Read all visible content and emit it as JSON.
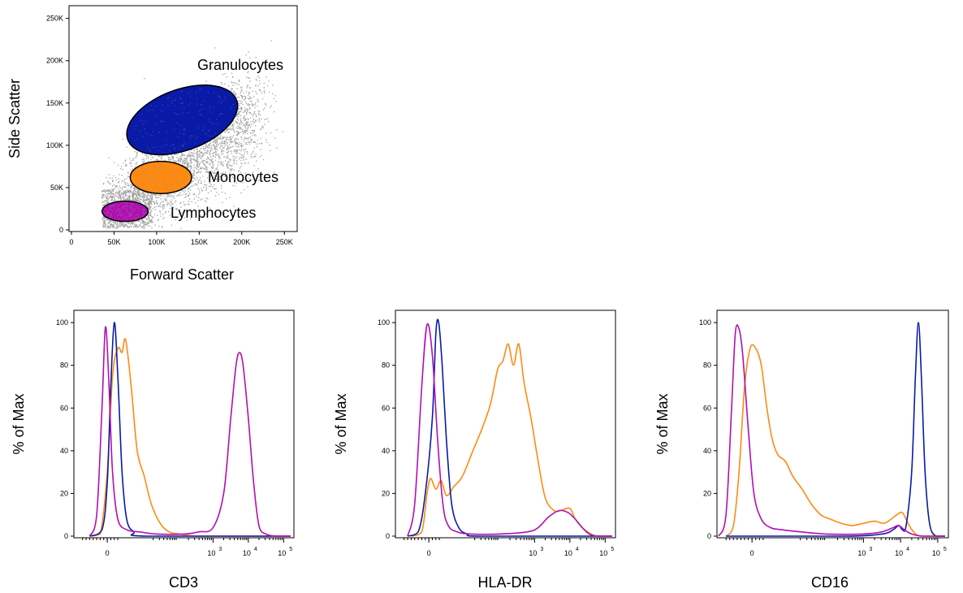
{
  "chart_data": [
    {
      "type": "scatter",
      "xlabel": "Forward Scatter",
      "ylabel": "Side Scatter",
      "xlim": [
        0,
        262144
      ],
      "ylim": [
        0,
        262144
      ],
      "xticks": [
        {
          "v": 0,
          "label": "0"
        },
        {
          "v": 50000,
          "label": "50K"
        },
        {
          "v": 100000,
          "label": "100K"
        },
        {
          "v": 150000,
          "label": "150K"
        },
        {
          "v": 200000,
          "label": "200K"
        },
        {
          "v": 250000,
          "label": "250K"
        }
      ],
      "yticks": [
        {
          "v": 0,
          "label": "0"
        },
        {
          "v": 50000,
          "label": "50K"
        },
        {
          "v": 100000,
          "label": "100K"
        },
        {
          "v": 150000,
          "label": "150K"
        },
        {
          "v": 200000,
          "label": "200K"
        },
        {
          "v": 250000,
          "label": "250K"
        }
      ],
      "background_color": "#a0a0a0",
      "gates": [
        {
          "name": "Granulocytes",
          "cx": 130000,
          "cy": 130000,
          "rx": 68000,
          "ry": 36000,
          "angle": -20,
          "color": "#0a1aa8"
        },
        {
          "name": "Monocytes",
          "cx": 105000,
          "cy": 62000,
          "rx": 36000,
          "ry": 19000,
          "angle": 0,
          "color": "#ff8a10"
        },
        {
          "name": "Lymphocytes",
          "cx": 63000,
          "cy": 22000,
          "rx": 27000,
          "ry": 12000,
          "angle": 0,
          "color": "#b10fb1"
        }
      ]
    },
    {
      "type": "line",
      "xlabel": "CD3",
      "ylabel": "% of Max",
      "ylim": [
        0,
        105
      ],
      "yticks": [
        0,
        20,
        40,
        60,
        80,
        100
      ],
      "xticks": [
        {
          "v": 0,
          "label": "0"
        },
        {
          "v": 3,
          "label": "3",
          "exp": true
        },
        {
          "v": 4,
          "label": "4",
          "exp": true
        },
        {
          "v": 5,
          "label": "5",
          "exp": true
        }
      ],
      "xlim": [
        -0.9,
        5.2
      ],
      "series": [
        {
          "color": "#ff8a10",
          "points": [
            [
              -0.5,
              0
            ],
            [
              -0.2,
              1
            ],
            [
              0,
              30
            ],
            [
              0.15,
              75
            ],
            [
              0.3,
              88
            ],
            [
              0.42,
              86
            ],
            [
              0.52,
              92
            ],
            [
              0.68,
              70
            ],
            [
              0.85,
              40
            ],
            [
              1.05,
              28
            ],
            [
              1.25,
              15
            ],
            [
              1.5,
              6
            ],
            [
              1.75,
              2
            ],
            [
              2.05,
              1
            ],
            [
              2.5,
              0
            ],
            [
              3.2,
              0
            ],
            [
              5.2,
              0
            ]
          ]
        },
        {
          "color": "#0a1aa8",
          "points": [
            [
              -0.5,
              0
            ],
            [
              -0.15,
              3
            ],
            [
              0,
              25
            ],
            [
              0.1,
              70
            ],
            [
              0.2,
              100
            ],
            [
              0.3,
              75
            ],
            [
              0.42,
              30
            ],
            [
              0.55,
              8
            ],
            [
              0.75,
              2
            ],
            [
              1.1,
              0
            ],
            [
              5.2,
              0
            ]
          ]
        },
        {
          "color": "#b10fb1",
          "points": [
            [
              -0.5,
              0
            ],
            [
              -0.3,
              10
            ],
            [
              -0.15,
              60
            ],
            [
              -0.05,
              98
            ],
            [
              0.05,
              70
            ],
            [
              0.15,
              30
            ],
            [
              0.3,
              8
            ],
            [
              0.55,
              3
            ],
            [
              0.9,
              2
            ],
            [
              1.4,
              1
            ],
            [
              2.2,
              1
            ],
            [
              2.6,
              2
            ],
            [
              3.0,
              4
            ],
            [
              3.3,
              20
            ],
            [
              3.5,
              55
            ],
            [
              3.65,
              80
            ],
            [
              3.75,
              86
            ],
            [
              3.85,
              80
            ],
            [
              4.0,
              55
            ],
            [
              4.15,
              25
            ],
            [
              4.3,
              5
            ],
            [
              4.5,
              1
            ],
            [
              4.8,
              0
            ],
            [
              5.2,
              0
            ]
          ]
        }
      ]
    },
    {
      "type": "line",
      "xlabel": "HLA-DR",
      "ylabel": "% of Max",
      "ylim": [
        0,
        105
      ],
      "yticks": [
        0,
        20,
        40,
        60,
        80,
        100
      ],
      "xticks": [
        {
          "v": 0,
          "label": "0"
        },
        {
          "v": 3,
          "label": "3",
          "exp": true
        },
        {
          "v": 4,
          "label": "4",
          "exp": true
        },
        {
          "v": 5,
          "label": "5",
          "exp": true
        }
      ],
      "xlim": [
        -0.9,
        5.2
      ],
      "series": [
        {
          "color": "#ff8a10",
          "points": [
            [
              -0.5,
              0
            ],
            [
              -0.2,
              2
            ],
            [
              -0.05,
              20
            ],
            [
              0.05,
              27
            ],
            [
              0.2,
              22
            ],
            [
              0.35,
              26
            ],
            [
              0.5,
              19
            ],
            [
              0.7,
              23
            ],
            [
              0.95,
              28
            ],
            [
              1.25,
              40
            ],
            [
              1.5,
              50
            ],
            [
              1.75,
              62
            ],
            [
              1.95,
              78
            ],
            [
              2.1,
              82
            ],
            [
              2.25,
              90
            ],
            [
              2.4,
              80
            ],
            [
              2.55,
              90
            ],
            [
              2.7,
              72
            ],
            [
              2.9,
              55
            ],
            [
              3.1,
              35
            ],
            [
              3.3,
              18
            ],
            [
              3.55,
              12
            ],
            [
              3.75,
              12
            ],
            [
              4.0,
              13
            ],
            [
              4.15,
              8
            ],
            [
              4.35,
              4
            ],
            [
              4.6,
              1
            ],
            [
              4.8,
              0
            ],
            [
              5.2,
              0
            ]
          ]
        },
        {
          "color": "#0a1aa8",
          "points": [
            [
              -0.6,
              0
            ],
            [
              -0.3,
              2
            ],
            [
              -0.1,
              20
            ],
            [
              0.1,
              55
            ],
            [
              0.2,
              95
            ],
            [
              0.28,
              100
            ],
            [
              0.38,
              80
            ],
            [
              0.5,
              45
            ],
            [
              0.65,
              15
            ],
            [
              0.85,
              4
            ],
            [
              1.1,
              1
            ],
            [
              1.5,
              0
            ],
            [
              5.2,
              0
            ]
          ]
        },
        {
          "color": "#b10fb1",
          "points": [
            [
              -0.6,
              0
            ],
            [
              -0.4,
              15
            ],
            [
              -0.2,
              70
            ],
            [
              -0.05,
              99
            ],
            [
              0.1,
              85
            ],
            [
              0.25,
              45
            ],
            [
              0.4,
              15
            ],
            [
              0.55,
              5
            ],
            [
              0.8,
              2
            ],
            [
              1.2,
              1
            ],
            [
              2.0,
              1
            ],
            [
              2.8,
              2
            ],
            [
              3.1,
              4
            ],
            [
              3.4,
              9
            ],
            [
              3.7,
              12
            ],
            [
              3.95,
              11
            ],
            [
              4.15,
              8
            ],
            [
              4.35,
              4
            ],
            [
              4.55,
              1
            ],
            [
              4.8,
              0
            ],
            [
              5.2,
              0
            ]
          ]
        }
      ]
    },
    {
      "type": "line",
      "xlabel": "CD16",
      "ylabel": "% of Max",
      "ylim": [
        0,
        105
      ],
      "yticks": [
        0,
        20,
        40,
        60,
        80,
        100
      ],
      "xticks": [
        {
          "v": 0,
          "label": "0"
        },
        {
          "v": 3,
          "label": "3",
          "exp": true
        },
        {
          "v": 4,
          "label": "4",
          "exp": true
        },
        {
          "v": 5,
          "label": "5",
          "exp": true
        }
      ],
      "xlim": [
        -0.9,
        5.2
      ],
      "series": [
        {
          "color": "#ff8a10",
          "points": [
            [
              -0.7,
              0
            ],
            [
              -0.5,
              5
            ],
            [
              -0.35,
              30
            ],
            [
              -0.2,
              70
            ],
            [
              -0.05,
              88
            ],
            [
              0.1,
              88
            ],
            [
              0.25,
              80
            ],
            [
              0.4,
              60
            ],
            [
              0.55,
              45
            ],
            [
              0.7,
              38
            ],
            [
              0.9,
              35
            ],
            [
              1.1,
              28
            ],
            [
              1.35,
              22
            ],
            [
              1.6,
              15
            ],
            [
              1.85,
              10
            ],
            [
              2.1,
              8
            ],
            [
              2.4,
              6
            ],
            [
              2.7,
              5
            ],
            [
              3.0,
              6
            ],
            [
              3.3,
              7
            ],
            [
              3.55,
              6
            ],
            [
              3.75,
              8
            ],
            [
              3.9,
              10
            ],
            [
              4.05,
              11
            ],
            [
              4.2,
              6
            ],
            [
              4.35,
              2
            ],
            [
              4.55,
              0
            ],
            [
              5.2,
              0
            ]
          ]
        },
        {
          "color": "#0a1aa8",
          "points": [
            [
              -0.7,
              0
            ],
            [
              2.5,
              0
            ],
            [
              3.5,
              1
            ],
            [
              3.8,
              3
            ],
            [
              3.95,
              5
            ],
            [
              4.05,
              3
            ],
            [
              4.15,
              5
            ],
            [
              4.3,
              30
            ],
            [
              4.4,
              75
            ],
            [
              4.48,
              100
            ],
            [
              4.56,
              75
            ],
            [
              4.66,
              30
            ],
            [
              4.78,
              6
            ],
            [
              4.95,
              0
            ],
            [
              5.2,
              0
            ]
          ]
        },
        {
          "color": "#b10fb1",
          "points": [
            [
              -0.9,
              0
            ],
            [
              -0.7,
              10
            ],
            [
              -0.55,
              60
            ],
            [
              -0.45,
              95
            ],
            [
              -0.35,
              97
            ],
            [
              -0.25,
              85
            ],
            [
              -0.1,
              50
            ],
            [
              0.05,
              20
            ],
            [
              0.25,
              8
            ],
            [
              0.5,
              4
            ],
            [
              0.8,
              3
            ],
            [
              1.3,
              2
            ],
            [
              2.0,
              1
            ],
            [
              3.0,
              1
            ],
            [
              3.5,
              2
            ],
            [
              3.8,
              4
            ],
            [
              3.95,
              5
            ],
            [
              4.1,
              3
            ],
            [
              4.3,
              1
            ],
            [
              4.6,
              0
            ],
            [
              5.2,
              0
            ]
          ]
        }
      ]
    }
  ],
  "gate_labels": {
    "granulocytes": "Granulocytes",
    "monocytes": "Monocytes",
    "lymphocytes": "Lymphocytes"
  },
  "axes": {
    "scatter_x": "Forward Scatter",
    "scatter_y": "Side Scatter",
    "hist_y": "% of Max",
    "hist1_x": "CD3",
    "hist2_x": "HLA-DR",
    "hist3_x": "CD16"
  }
}
